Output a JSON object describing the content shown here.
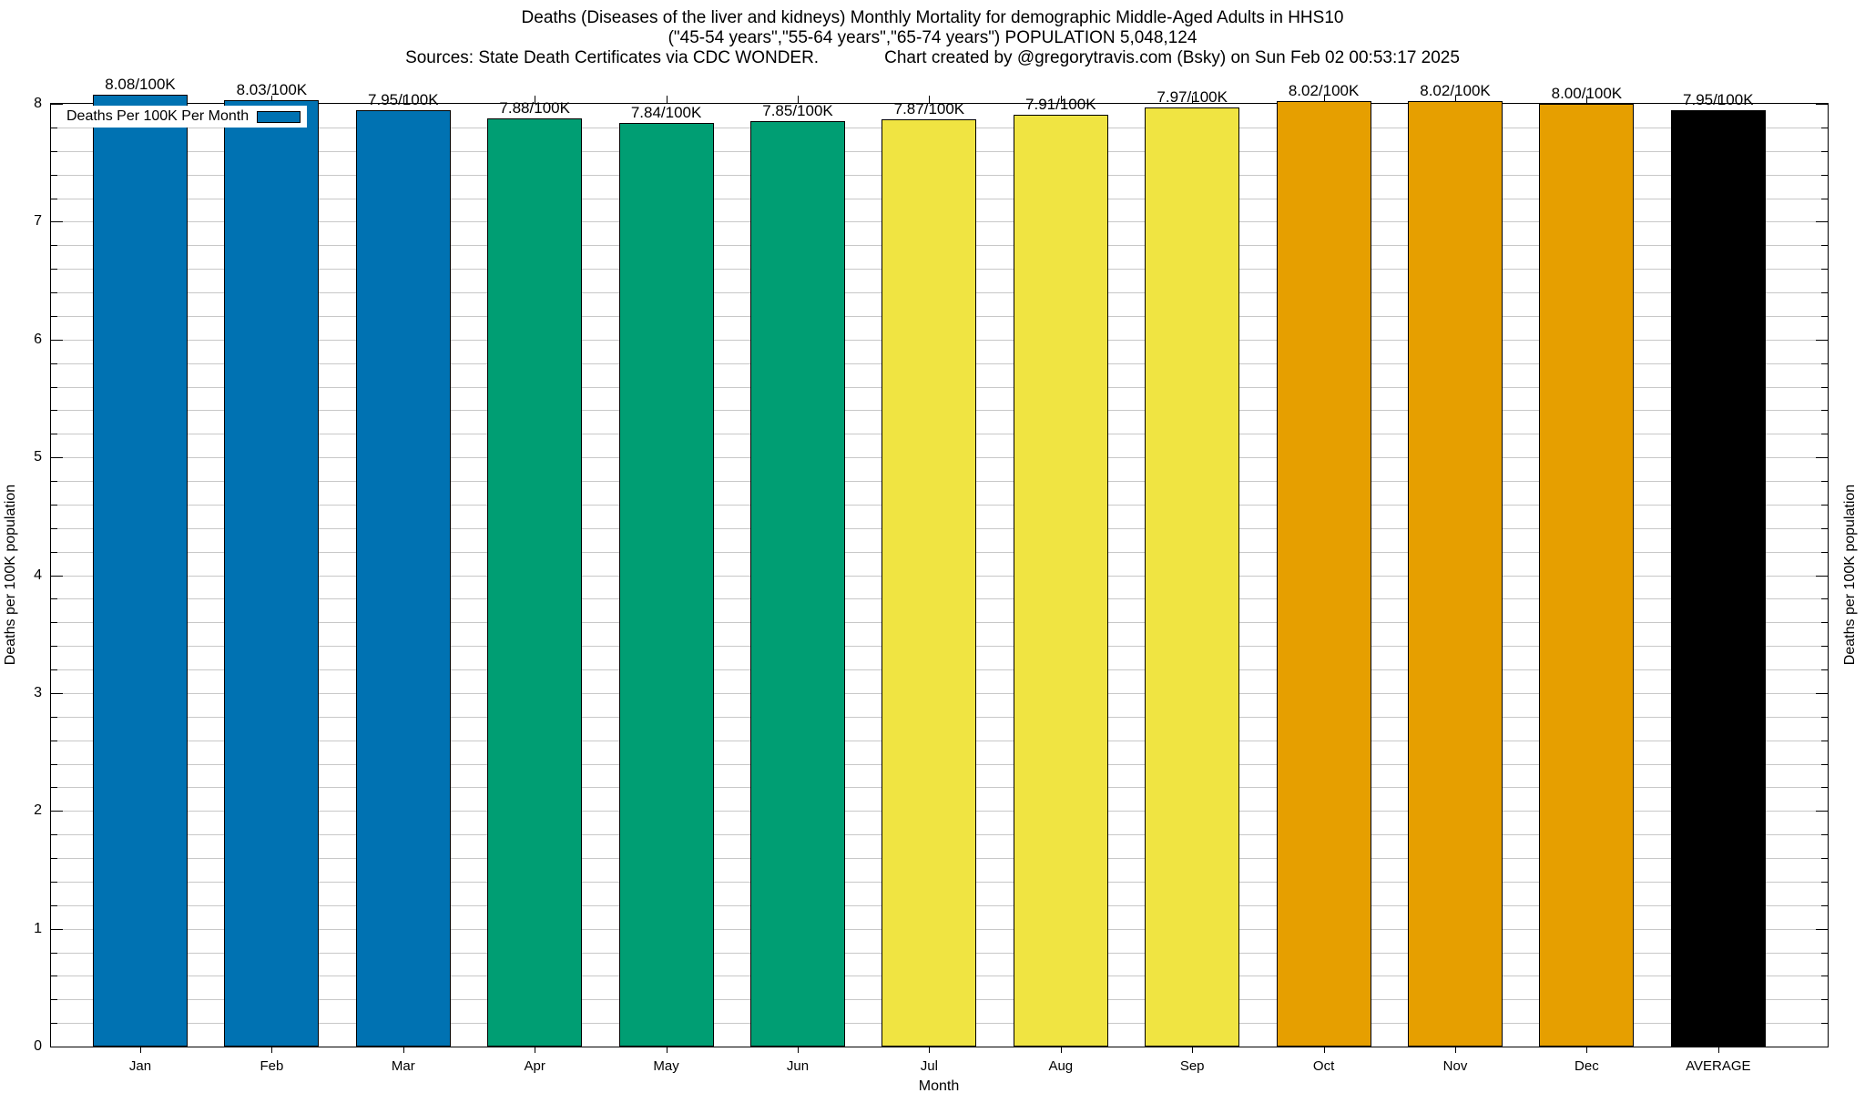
{
  "title": {
    "line1": "Deaths (Diseases of the liver and kidneys) Monthly Mortality for demographic Middle-Aged Adults in HHS10",
    "line2": "(\"45-54 years\",\"55-64 years\",\"65-74 years\") POPULATION 5,048,124",
    "line3_left": "Sources: State Death Certificates via CDC WONDER.",
    "line3_right": "Chart created by @gregorytravis.com (Bsky) on Sun Feb 02 00:53:17 2025"
  },
  "legend": {
    "label": "Deaths Per 100K Per Month",
    "swatch_color": "#0072B2"
  },
  "chart_data": {
    "type": "bar",
    "title": "Deaths (Diseases of the liver and kidneys) Monthly Mortality for demographic Middle-Aged Adults in HHS10",
    "categories": [
      "Jan",
      "Feb",
      "Mar",
      "Apr",
      "May",
      "Jun",
      "Jul",
      "Aug",
      "Sep",
      "Oct",
      "Nov",
      "Dec",
      "AVERAGE"
    ],
    "values": [
      8.08,
      8.03,
      7.95,
      7.88,
      7.84,
      7.85,
      7.87,
      7.91,
      7.97,
      8.02,
      8.02,
      8.0,
      7.95
    ],
    "bar_labels": [
      "8.08/100K",
      "8.03/100K",
      "7.95/100K",
      "7.88/100K",
      "7.84/100K",
      "7.85/100K",
      "7.87/100K",
      "7.91/100K",
      "7.97/100K",
      "8.02/100K",
      "8.02/100K",
      "8.00/100K",
      "7.95/100K"
    ],
    "bar_colors": [
      "#0072B2",
      "#0072B2",
      "#0072B2",
      "#009E73",
      "#009E73",
      "#009E73",
      "#F0E442",
      "#F0E442",
      "#F0E442",
      "#E69F00",
      "#E69F00",
      "#E69F00",
      "#000000"
    ],
    "xlabel": "Month",
    "ylabel_left": "Deaths per 100K population",
    "ylabel_right": "Deaths per 100K population",
    "ylim": [
      0,
      8
    ],
    "yticks": [
      "0",
      "1",
      "2",
      "3",
      "4",
      "5",
      "6",
      "7",
      "8"
    ],
    "minor_tick_step": 0.2,
    "grid": true,
    "grid_color": "#c8c8c8",
    "legend_position": "top-left-inside"
  }
}
